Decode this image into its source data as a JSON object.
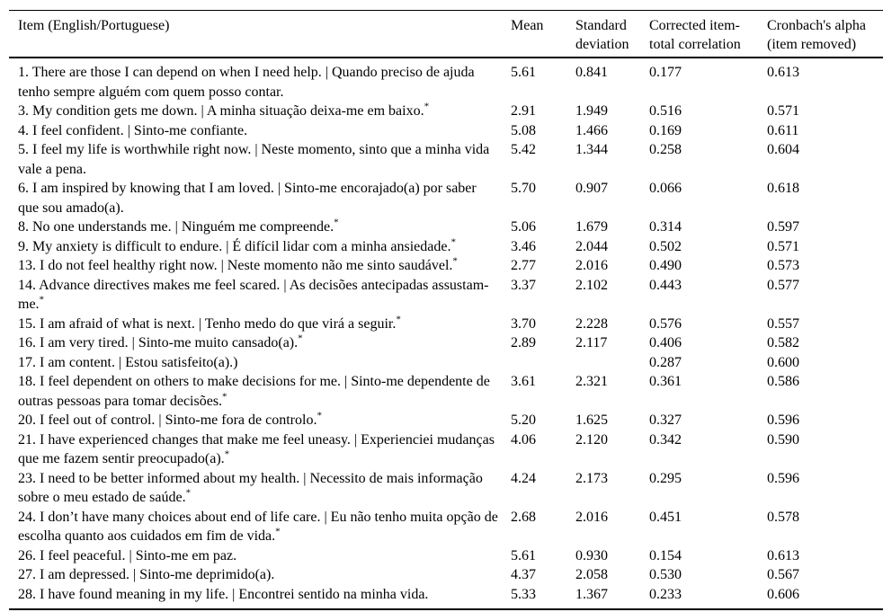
{
  "table": {
    "columns": {
      "item": "Item (English/Portuguese)",
      "mean": "Mean",
      "sd_line1": "Standard",
      "sd_line2": "deviation",
      "citc_line1": "Corrected item-",
      "citc_line2": "total correlation",
      "alpha_line1": "Cronbach's alpha",
      "alpha_line2": "(item removed)"
    },
    "asterisk_symbol": "*",
    "rows": [
      {
        "item": "1. There are those I can depend on when I need help. | Quando preciso de ajuda tenho sempre alguém com quem posso contar.",
        "sup": "",
        "mean": "5.61",
        "sd": "0.841",
        "citc": "0.177",
        "alpha": "0.613"
      },
      {
        "item": "3. My condition gets me down. | A minha situação deixa-me em baixo.",
        "sup": "*",
        "mean": "2.91",
        "sd": "1.949",
        "citc": "0.516",
        "alpha": "0.571"
      },
      {
        "item": "4. I feel confident. | Sinto-me confiante.",
        "sup": "",
        "mean": "5.08",
        "sd": "1.466",
        "citc": "0.169",
        "alpha": "0.611"
      },
      {
        "item": "5. I feel my life is worthwhile right now. | Neste momento, sinto que a minha vida vale a pena.",
        "sup": "",
        "mean": "5.42",
        "sd": "1.344",
        "citc": "0.258",
        "alpha": "0.604"
      },
      {
        "item": "6. I am inspired by knowing that I am loved. | Sinto-me encorajado(a) por saber que sou amado(a).",
        "sup": "",
        "mean": "5.70",
        "sd": "0.907",
        "citc": "0.066",
        "alpha": "0.618"
      },
      {
        "item": "8. No one understands me. | Ninguém me compreende.",
        "sup": "*",
        "mean": "5.06",
        "sd": "1.679",
        "citc": "0.314",
        "alpha": "0.597"
      },
      {
        "item": "9. My anxiety is difficult to endure. | É difícil lidar com a minha ansiedade.",
        "sup": "*",
        "mean": "3.46",
        "sd": "2.044",
        "citc": "0.502",
        "alpha": "0.571"
      },
      {
        "item": "13. I do not feel healthy right now. | Neste momento não me sinto saudável.",
        "sup": "*",
        "mean": "2.77",
        "sd": "2.016",
        "citc": "0.490",
        "alpha": "0.573"
      },
      {
        "item": "14. Advance directives makes me feel scared. | As decisões antecipadas assustam-me.",
        "sup": "*",
        "mean": "3.37",
        "sd": "2.102",
        "citc": "0.443",
        "alpha": "0.577"
      },
      {
        "item": "15. I am afraid of what is next. | Tenho medo do que virá a seguir.",
        "sup": "*",
        "mean": "3.70",
        "sd": "2.228",
        "citc": "0.576",
        "alpha": "0.557"
      },
      {
        "item": "16. I am very tired. | Sinto-me muito cansado(a).",
        "sup": "*",
        "mean": "2.89",
        "sd": "2.117",
        "citc": "0.406",
        "alpha": "0.582"
      },
      {
        "item": "17. I am content. | Estou satisfeito(a).)",
        "sup": "",
        "mean": "",
        "sd": "",
        "citc": "0.287",
        "alpha": "0.600"
      },
      {
        "item": "18. I feel dependent on others to make decisions for me. | Sinto-me dependente de outras pessoas para tomar decisões.",
        "sup": "*",
        "mean": "3.61",
        "sd": "2.321",
        "citc": "0.361",
        "alpha": "0.586"
      },
      {
        "item": "20. I feel out of control. | Sinto-me fora de controlo.",
        "sup": "*",
        "mean": "5.20",
        "sd": "1.625",
        "citc": "0.327",
        "alpha": "0.596"
      },
      {
        "item": "21. I have experienced changes that make me feel uneasy. | Experienciei mudanças que me fazem sentir preocupado(a).",
        "sup": "*",
        "mean": "4.06",
        "sd": "2.120",
        "citc": "0.342",
        "alpha": "0.590"
      },
      {
        "item": "23. I need to be better informed about my health. | Necessito de mais informação sobre o meu estado de saúde.",
        "sup": "*",
        "mean": "4.24",
        "sd": "2.173",
        "citc": "0.295",
        "alpha": "0.596"
      },
      {
        "item": "24. I don’t have many choices about end of life care. | Eu não tenho muita opção de escolha quanto aos cuidados em fim de vida.",
        "sup": "*",
        "mean": "2.68",
        "sd": "2.016",
        "citc": "0.451",
        "alpha": "0.578"
      },
      {
        "item": "26. I feel peaceful. | Sinto-me em paz.",
        "sup": "",
        "mean": "5.61",
        "sd": "0.930",
        "citc": "0.154",
        "alpha": "0.613"
      },
      {
        "item": "27. I am depressed. | Sinto-me deprimido(a).",
        "sup": "",
        "mean": "4.37",
        "sd": "2.058",
        "citc": "0.530",
        "alpha": "0.567"
      },
      {
        "item": "28. I have found meaning in my life. | Encontrei sentido na minha vida.",
        "sup": "",
        "mean": "5.33",
        "sd": "1.367",
        "citc": "0.233",
        "alpha": "0.606"
      }
    ]
  }
}
